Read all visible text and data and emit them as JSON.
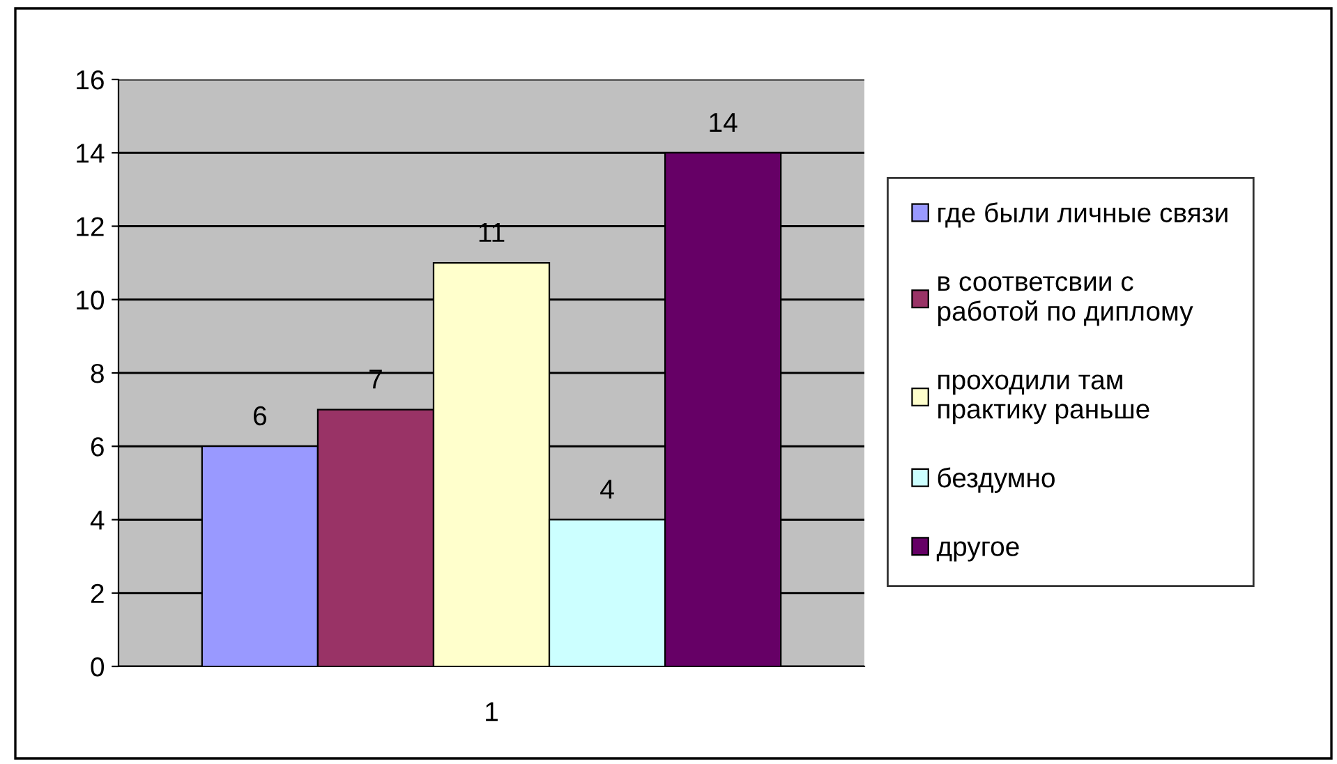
{
  "chart_data": {
    "type": "bar",
    "categories": [
      "1"
    ],
    "series": [
      {
        "name": "где были личные связи",
        "color": "#9999ff",
        "values": [
          6
        ]
      },
      {
        "name": "в соответсвии с\nработой по диплому",
        "color": "#993366",
        "values": [
          7
        ]
      },
      {
        "name": "проходили там\nпрактику раньше",
        "color": "#ffffcc",
        "values": [
          11
        ]
      },
      {
        "name": "бездумно",
        "color": "#ccffff",
        "values": [
          4
        ]
      },
      {
        "name": "другое",
        "color": "#660066",
        "values": [
          14
        ]
      }
    ],
    "ylim": [
      0,
      16
    ],
    "yticks": [
      0,
      2,
      4,
      6,
      8,
      10,
      12,
      14,
      16
    ],
    "grid": "y",
    "legend": "right",
    "data_labels": true
  }
}
